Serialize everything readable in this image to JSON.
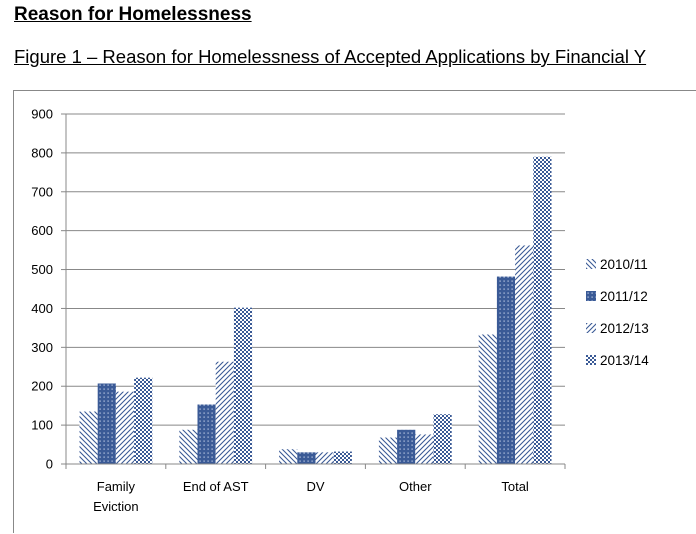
{
  "page": {
    "heading": "Reason for Homelessness",
    "figure_title": "Figure 1 – Reason for Homelessness of Accepted Applications by Financial Y"
  },
  "colors": {
    "series": "#3a5a96",
    "axis": "#888888"
  },
  "chart_data": {
    "type": "bar",
    "title": "Figure 1 – Reason for Homelessness of Accepted Applications by Financial Y",
    "xlabel": "",
    "ylabel": "",
    "ylim": [
      0,
      900
    ],
    "yticks": [
      0,
      100,
      200,
      300,
      400,
      500,
      600,
      700,
      800,
      900
    ],
    "grid": true,
    "legend_position": "right",
    "categories": [
      [
        "Family",
        "Eviction"
      ],
      [
        "End of AST"
      ],
      [
        "DV"
      ],
      [
        "Other"
      ],
      [
        "Total"
      ]
    ],
    "series": [
      {
        "name": "2010/11",
        "pattern": "diag-back",
        "values": [
          135,
          88,
          38,
          68,
          333
        ]
      },
      {
        "name": "2011/12",
        "pattern": "grid",
        "values": [
          207,
          153,
          30,
          88,
          482
        ]
      },
      {
        "name": "2012/13",
        "pattern": "diag-fwd",
        "values": [
          186,
          263,
          30,
          76,
          562
        ]
      },
      {
        "name": "2013/14",
        "pattern": "check",
        "values": [
          222,
          402,
          32,
          128,
          790
        ]
      }
    ]
  }
}
